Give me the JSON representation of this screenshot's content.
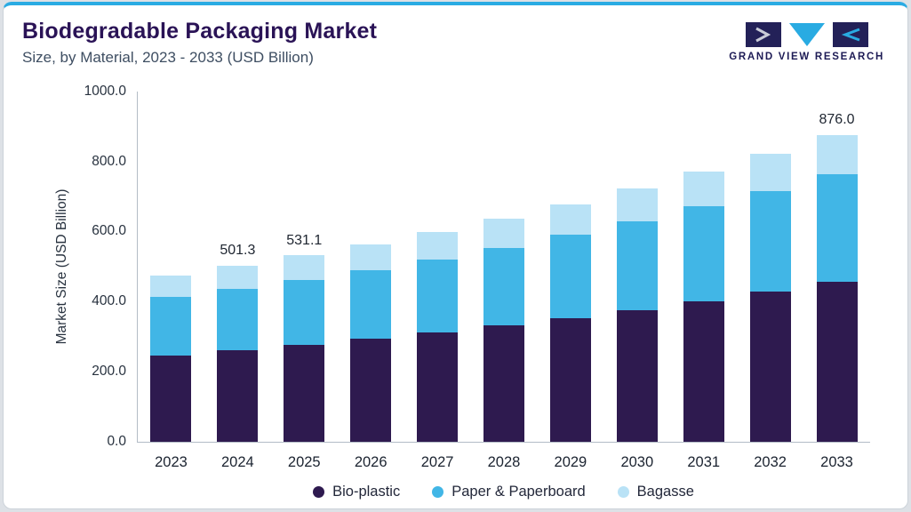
{
  "header": {
    "title": "Biodegradable Packaging Market",
    "subtitle": "Size, by Material, 2023 - 2033 (USD Billion)"
  },
  "logo": {
    "text": "GRAND VIEW RESEARCH",
    "dark_color": "#232158",
    "accent_color": "#29abe2"
  },
  "colors": {
    "accent_line": "#2aabe3",
    "title": "#2a1356",
    "axis": "#b3bcc6"
  },
  "chart_data": {
    "type": "bar",
    "stacked": true,
    "title": "Biodegradable Packaging Market Size, by Material, 2023 - 2033 (USD Billion)",
    "categories": [
      "2023",
      "2024",
      "2025",
      "2026",
      "2027",
      "2028",
      "2029",
      "2030",
      "2031",
      "2032",
      "2033"
    ],
    "series": [
      {
        "name": "Bio-plastic",
        "color": "#2e1a4f",
        "values": [
          246.5,
          260.7,
          276.2,
          292.8,
          311.0,
          330.7,
          352.6,
          376.0,
          401.4,
          427.4,
          455.5
        ]
      },
      {
        "name": "Paper & Paperboard",
        "color": "#41b6e6",
        "values": [
          165.9,
          175.5,
          185.9,
          197.1,
          209.3,
          222.6,
          237.3,
          253.1,
          270.2,
          287.7,
          306.6
        ]
      },
      {
        "name": "Bagasse",
        "color": "#b9e2f6",
        "values": [
          61.6,
          65.1,
          69.0,
          73.1,
          77.7,
          82.7,
          88.1,
          93.9,
          100.4,
          106.9,
          113.9
        ]
      }
    ],
    "totals_labeled": {
      "2024": "501.3",
      "2025": "531.1",
      "2033": "876.0"
    },
    "xlabel": "",
    "ylabel": "Market Size (USD Billion)",
    "ylim": [
      0,
      1000
    ],
    "yticks": [
      "0.0",
      "200.0",
      "400.0",
      "600.0",
      "800.0",
      "1000.0"
    ],
    "grid": false,
    "legend_position": "bottom"
  }
}
